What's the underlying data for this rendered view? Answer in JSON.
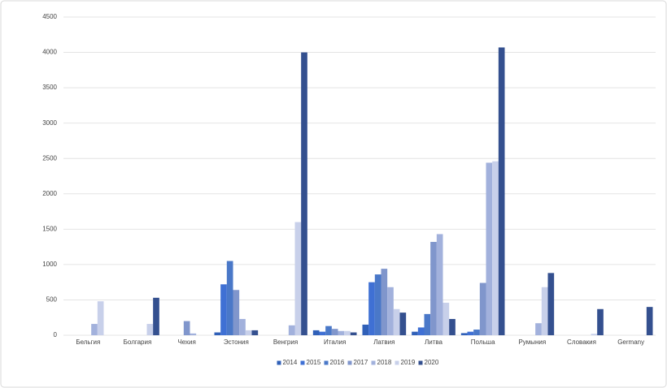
{
  "chart_data": {
    "type": "bar",
    "categories": [
      "Бельгия",
      "Болгария",
      "Чехия",
      "Эстония",
      "Венгрия",
      "Италия",
      "Латвия",
      "Литва",
      "Польша",
      "Румыния",
      "Словакия",
      "Germany"
    ],
    "series": [
      {
        "name": "2014",
        "color": "#3060b8",
        "values": [
          0,
          0,
          0,
          40,
          0,
          70,
          150,
          50,
          30,
          0,
          0,
          0
        ]
      },
      {
        "name": "2015",
        "color": "#3f70d4",
        "values": [
          0,
          0,
          0,
          720,
          0,
          50,
          750,
          110,
          50,
          0,
          0,
          0
        ]
      },
      {
        "name": "2016",
        "color": "#4a78c8",
        "values": [
          0,
          0,
          0,
          1050,
          0,
          130,
          860,
          300,
          80,
          0,
          0,
          0
        ]
      },
      {
        "name": "2017",
        "color": "#8096cc",
        "values": [
          0,
          0,
          200,
          640,
          0,
          90,
          940,
          1320,
          740,
          0,
          0,
          0
        ]
      },
      {
        "name": "2018",
        "color": "#a2b1dc",
        "values": [
          160,
          0,
          25,
          230,
          140,
          60,
          680,
          1430,
          2440,
          170,
          0,
          0
        ]
      },
      {
        "name": "2019",
        "color": "#c8d0ea",
        "values": [
          480,
          160,
          0,
          70,
          1600,
          60,
          370,
          460,
          2460,
          680,
          20,
          0
        ]
      },
      {
        "name": "2020",
        "color": "#34508f",
        "values": [
          0,
          530,
          0,
          70,
          4000,
          40,
          320,
          230,
          4070,
          880,
          370,
          400
        ]
      }
    ],
    "ylim": [
      0,
      4500
    ],
    "yticks": [
      0,
      500,
      1000,
      1500,
      2000,
      2500,
      3000,
      3500,
      4000,
      4500
    ],
    "grid": true,
    "legend": "bottom"
  }
}
